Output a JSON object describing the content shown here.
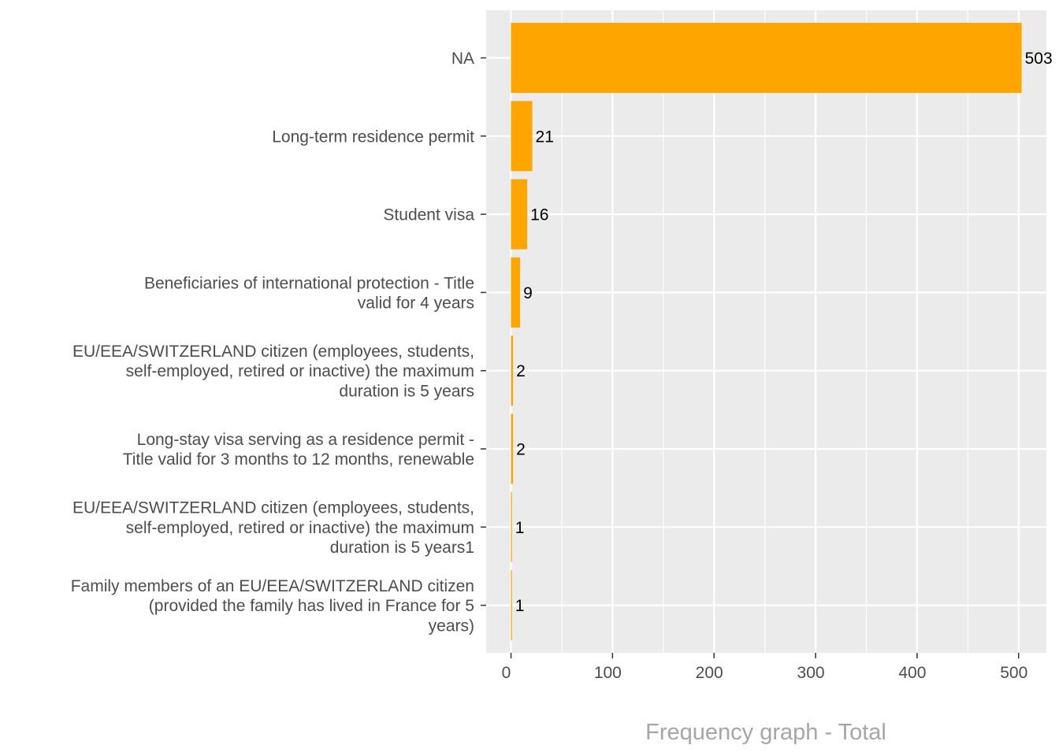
{
  "chart_data": {
    "type": "bar",
    "orientation": "horizontal",
    "title": "",
    "xlabel": "Frequency graph - Total",
    "ylabel": "",
    "xlim": [
      0,
      528
    ],
    "xticks": [
      0,
      100,
      200,
      300,
      400,
      500
    ],
    "xtick_labels": [
      "0",
      "100",
      "200",
      "300",
      "400",
      "500"
    ],
    "grid": true,
    "categories": [
      [
        "NA"
      ],
      [
        "Long-term residence permit"
      ],
      [
        "Student visa"
      ],
      [
        "Beneficiaries of international protection - Title",
        "valid for 4 years"
      ],
      [
        "EU/EEA/SWITZERLAND citizen (employees, students,",
        "self-employed, retired or inactive) the maximum",
        "duration is 5 years"
      ],
      [
        "Long-stay visa serving as a residence permit -",
        "Title valid for 3 months to 12 months, renewable"
      ],
      [
        "EU/EEA/SWITZERLAND citizen (employees, students,",
        "self-employed, retired or inactive) the maximum",
        "duration is 5 years1"
      ],
      [
        "Family members of an EU/EEA/SWITZERLAND citizen",
        "(provided the family has lived in France for 5",
        "years)"
      ]
    ],
    "values": [
      503,
      21,
      16,
      9,
      2,
      2,
      1,
      1
    ],
    "value_labels": [
      "503",
      "21",
      "16",
      "9",
      "2",
      "2",
      "1",
      "1"
    ],
    "colors": {
      "bar": "#FFA500",
      "panel": "#EBEBEB",
      "grid": "#FFFFFF",
      "tick_text": "#4D4D4D",
      "axis_title": "#A6A6A6"
    }
  }
}
